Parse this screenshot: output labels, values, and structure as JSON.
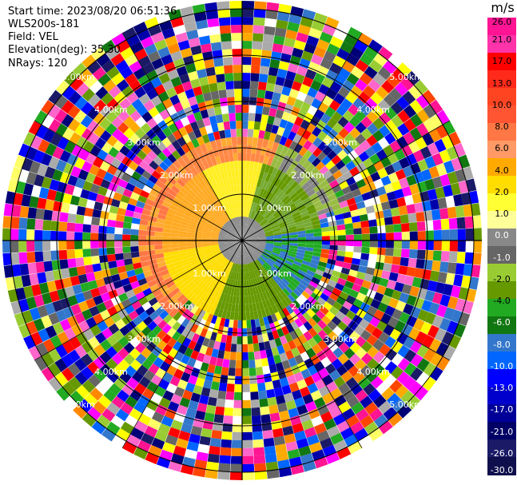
{
  "info": {
    "start_time": "Start time: 2023/08/20 06:51:36",
    "site": "WLS200s-181",
    "field": "Field: VEL",
    "elevation": "Elevation(deg): 35.30",
    "nrays": "NRays: 120"
  },
  "colorbar": {
    "unit": "m/s",
    "ticks": [
      "26.0",
      "21.0",
      "17.0",
      "13.0",
      "10.0",
      "8.0",
      "6.0",
      "4.0",
      "2.0",
      "1.0",
      "0.0",
      "-1.0",
      "-2.0",
      "-4.0",
      "-6.0",
      "-8.0",
      "-10.0",
      "-13.0",
      "-17.0",
      "-21.0",
      "-26.0",
      "-30.0"
    ],
    "colors": [
      "#ff1493",
      "#ff33aa",
      "#ff0000",
      "#ff2a1a",
      "#ff4422",
      "#ff5533",
      "#ff7744",
      "#ff9966",
      "#ffaa00",
      "#ffdd00",
      "#ffff33",
      "#ffff99",
      "#888888",
      "#666666",
      "#99cc33",
      "#669900",
      "#22aa22",
      "#117711",
      "#3377cc",
      "#0066ff",
      "#0000ff",
      "#0000cc",
      "#000099",
      "#000066",
      "#1a1a66",
      "#0f0f4d"
    ]
  },
  "rings": [
    "1.00km",
    "2.00km",
    "3.00km",
    "4.00km",
    "5.00km"
  ],
  "ring_label_sets": [
    [
      "1.00km",
      "1.00km",
      "1.00km",
      "1.00km"
    ],
    [
      "2.00km",
      "2.00km",
      "2.00km",
      "2.00km"
    ],
    [
      "3.00km",
      "3.00km",
      "3.00km",
      "3.00km"
    ],
    [
      "4.00km",
      "4.00km",
      "4.00km",
      "4.00km"
    ],
    [
      "5.00km",
      "5.00km",
      "5.00km",
      "5.00km"
    ]
  ]
}
